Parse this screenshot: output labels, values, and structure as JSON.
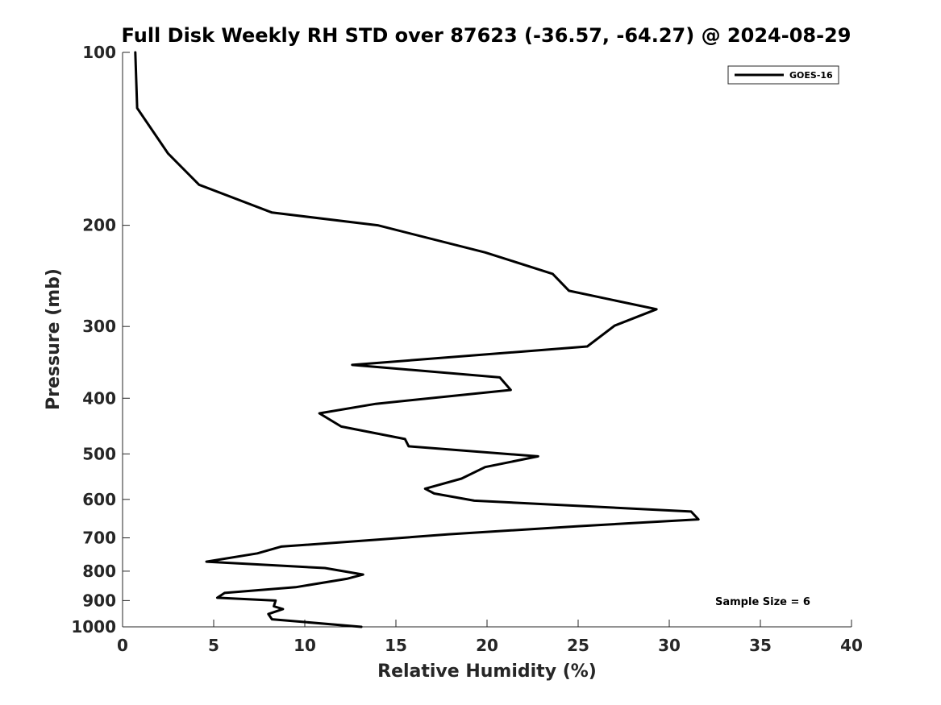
{
  "chart_data": {
    "type": "line",
    "title": "Full Disk Weekly RH STD over 87623 (-36.57, -64.27) @ 2024-08-29",
    "xlabel": "Relative Humidity (%)",
    "ylabel": "Pressure (mb)",
    "xlim": [
      0,
      40
    ],
    "ylim": [
      100,
      1000
    ],
    "y_scale": "log",
    "y_reversed": true,
    "x_ticks": [
      0,
      5,
      10,
      15,
      20,
      25,
      30,
      35,
      40
    ],
    "y_ticks": [
      100,
      200,
      300,
      400,
      500,
      600,
      700,
      800,
      900,
      1000
    ],
    "grid": false,
    "legend_position": "top-right",
    "annotation": "Sample Size = 6",
    "series": [
      {
        "name": "GOES-16",
        "color": "#000000",
        "points": [
          [
            0.7,
            100
          ],
          [
            0.8,
            125
          ],
          [
            2.5,
            150
          ],
          [
            4.2,
            170
          ],
          [
            8.2,
            190
          ],
          [
            14.0,
            200
          ],
          [
            19.9,
            223
          ],
          [
            23.6,
            243
          ],
          [
            24.5,
            260
          ],
          [
            29.3,
            280
          ],
          [
            27.0,
            299
          ],
          [
            25.5,
            325
          ],
          [
            12.6,
            350
          ],
          [
            20.7,
            368
          ],
          [
            21.3,
            387
          ],
          [
            13.9,
            409
          ],
          [
            10.8,
            425
          ],
          [
            12.0,
            448
          ],
          [
            15.5,
            471
          ],
          [
            15.7,
            485
          ],
          [
            22.8,
            505
          ],
          [
            19.9,
            527
          ],
          [
            18.6,
            552
          ],
          [
            16.6,
            575
          ],
          [
            17.1,
            586
          ],
          [
            19.3,
            603
          ],
          [
            31.2,
            630
          ],
          [
            31.6,
            650
          ],
          [
            25.0,
            668
          ],
          [
            17.9,
            690
          ],
          [
            14.0,
            705
          ],
          [
            8.7,
            725
          ],
          [
            7.4,
            745
          ],
          [
            4.6,
            770
          ],
          [
            11.1,
            790
          ],
          [
            13.2,
            811
          ],
          [
            12.3,
            825
          ],
          [
            9.5,
            853
          ],
          [
            5.6,
            873
          ],
          [
            5.2,
            890
          ],
          [
            8.4,
            900
          ],
          [
            8.3,
            921
          ],
          [
            8.8,
            931
          ],
          [
            8.0,
            950
          ],
          [
            8.2,
            970
          ],
          [
            13.1,
            1000
          ]
        ]
      }
    ]
  }
}
